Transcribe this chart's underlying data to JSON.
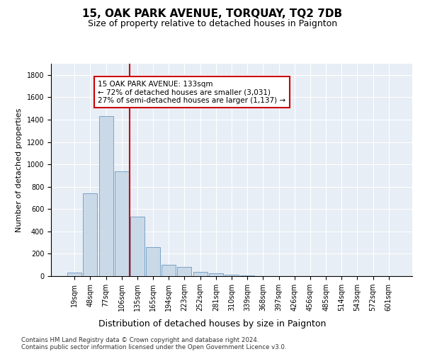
{
  "title1": "15, OAK PARK AVENUE, TORQUAY, TQ2 7DB",
  "title2": "Size of property relative to detached houses in Paignton",
  "xlabel": "Distribution of detached houses by size in Paignton",
  "ylabel": "Number of detached properties",
  "footnote": "Contains HM Land Registry data © Crown copyright and database right 2024.\nContains public sector information licensed under the Open Government Licence v3.0.",
  "bar_labels": [
    "19sqm",
    "48sqm",
    "77sqm",
    "106sqm",
    "135sqm",
    "165sqm",
    "194sqm",
    "223sqm",
    "252sqm",
    "281sqm",
    "310sqm",
    "339sqm",
    "368sqm",
    "397sqm",
    "426sqm",
    "456sqm",
    "485sqm",
    "514sqm",
    "543sqm",
    "572sqm",
    "601sqm"
  ],
  "bar_values": [
    30,
    740,
    1430,
    940,
    530,
    260,
    100,
    85,
    40,
    25,
    10,
    5,
    2,
    2,
    2,
    2,
    2,
    2,
    2,
    2,
    2
  ],
  "bar_color": "#c9d9e8",
  "bar_edge_color": "#7ba3c8",
  "vline_x_index": 4,
  "vline_color": "#cc0000",
  "annotation_text": "15 OAK PARK AVENUE: 133sqm\n← 72% of detached houses are smaller (3,031)\n27% of semi-detached houses are larger (1,137) →",
  "annotation_box_color": "#ffffff",
  "annotation_box_edge_color": "#cc0000",
  "ylim": [
    0,
    1900
  ],
  "yticks": [
    0,
    200,
    400,
    600,
    800,
    1000,
    1200,
    1400,
    1600,
    1800
  ],
  "grid_color": "#ffffff",
  "bg_color": "#e8eef5",
  "title1_fontsize": 11,
  "title2_fontsize": 9,
  "ylabel_fontsize": 8,
  "xlabel_fontsize": 9,
  "tick_fontsize": 7
}
